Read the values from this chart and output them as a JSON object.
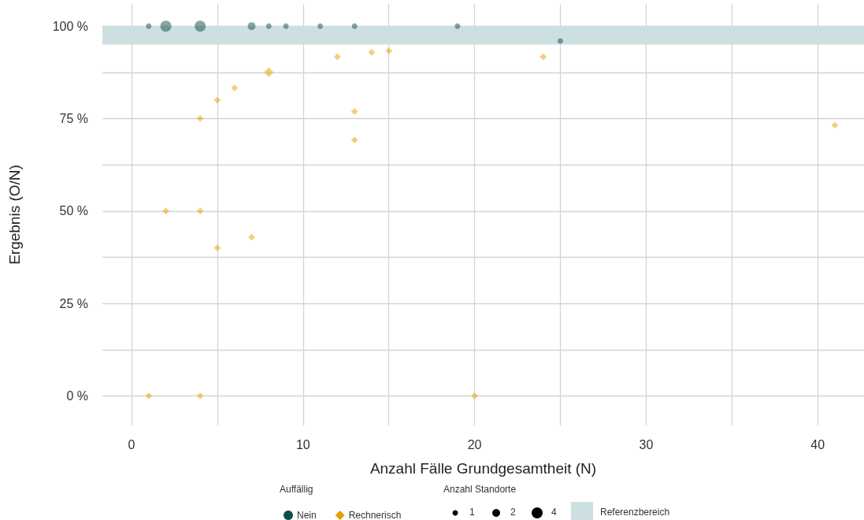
{
  "chart_data": {
    "type": "bubble",
    "xlabel": "Anzahl Fälle Grundgesamtheit (N)",
    "ylabel": "Ergebnis (O/N)",
    "legend_title": "Auffällig",
    "annotations": [
      "Anzahl Standorte"
    ],
    "series": [
      {
        "name": "Nein",
        "color": "#0f4c4a",
        "marker": "circle",
        "x": [
          1,
          2,
          4,
          7,
          8,
          9,
          11,
          13,
          19,
          25
        ],
        "values": [
          100,
          100,
          100,
          100,
          100,
          100,
          100,
          100,
          100,
          96
        ],
        "sizes": [
          1,
          4,
          4,
          2,
          1,
          1,
          1,
          1,
          1,
          1
        ]
      },
      {
        "name": "Rechnerisch",
        "color": "#e6a000",
        "marker": "diamond",
        "x": [
          1,
          2,
          4,
          4,
          4,
          5,
          5,
          6,
          7,
          8,
          12,
          13,
          13,
          14,
          15,
          20,
          24,
          41
        ],
        "values": [
          0,
          50,
          75,
          50,
          0,
          80,
          40,
          83.3,
          42.9,
          87.5,
          91.7,
          76.9,
          69.2,
          92.9,
          93.3,
          0,
          91.7,
          73.2
        ],
        "sizes": [
          1,
          1,
          1,
          1,
          1,
          1,
          1,
          1,
          1,
          2,
          1,
          1,
          1,
          1,
          1,
          1,
          1,
          1
        ]
      }
    ],
    "size_legend": [
      1,
      2,
      4
    ],
    "bands": [
      {
        "axis": "y",
        "from": 95,
        "to": 100,
        "label": "Referenzbereich",
        "color": "#cddfe0"
      }
    ],
    "xlim": [
      -1.7,
      42.7
    ],
    "xticks": [
      0,
      {
        "value": 5,
        "label": null
      },
      10,
      {
        "value": 15,
        "label": null
      },
      20,
      {
        "value": 25,
        "label": null
      },
      30,
      {
        "value": 35,
        "label": null
      },
      40
    ],
    "ylim": [
      -8,
      106
    ],
    "yticks": [
      {
        "value": 0,
        "label": "0 %"
      },
      {
        "value": 12.5,
        "label": null
      },
      {
        "value": 25,
        "label": "25 %"
      },
      {
        "value": 37.5,
        "label": null
      },
      {
        "value": 50,
        "label": "50 %"
      },
      {
        "value": 62.5,
        "label": null
      },
      {
        "value": 75,
        "label": "75 %"
      },
      {
        "value": 87.5,
        "label": null
      },
      {
        "value": 100,
        "label": "100 %"
      }
    ],
    "grid": true,
    "legend": "bottom"
  }
}
